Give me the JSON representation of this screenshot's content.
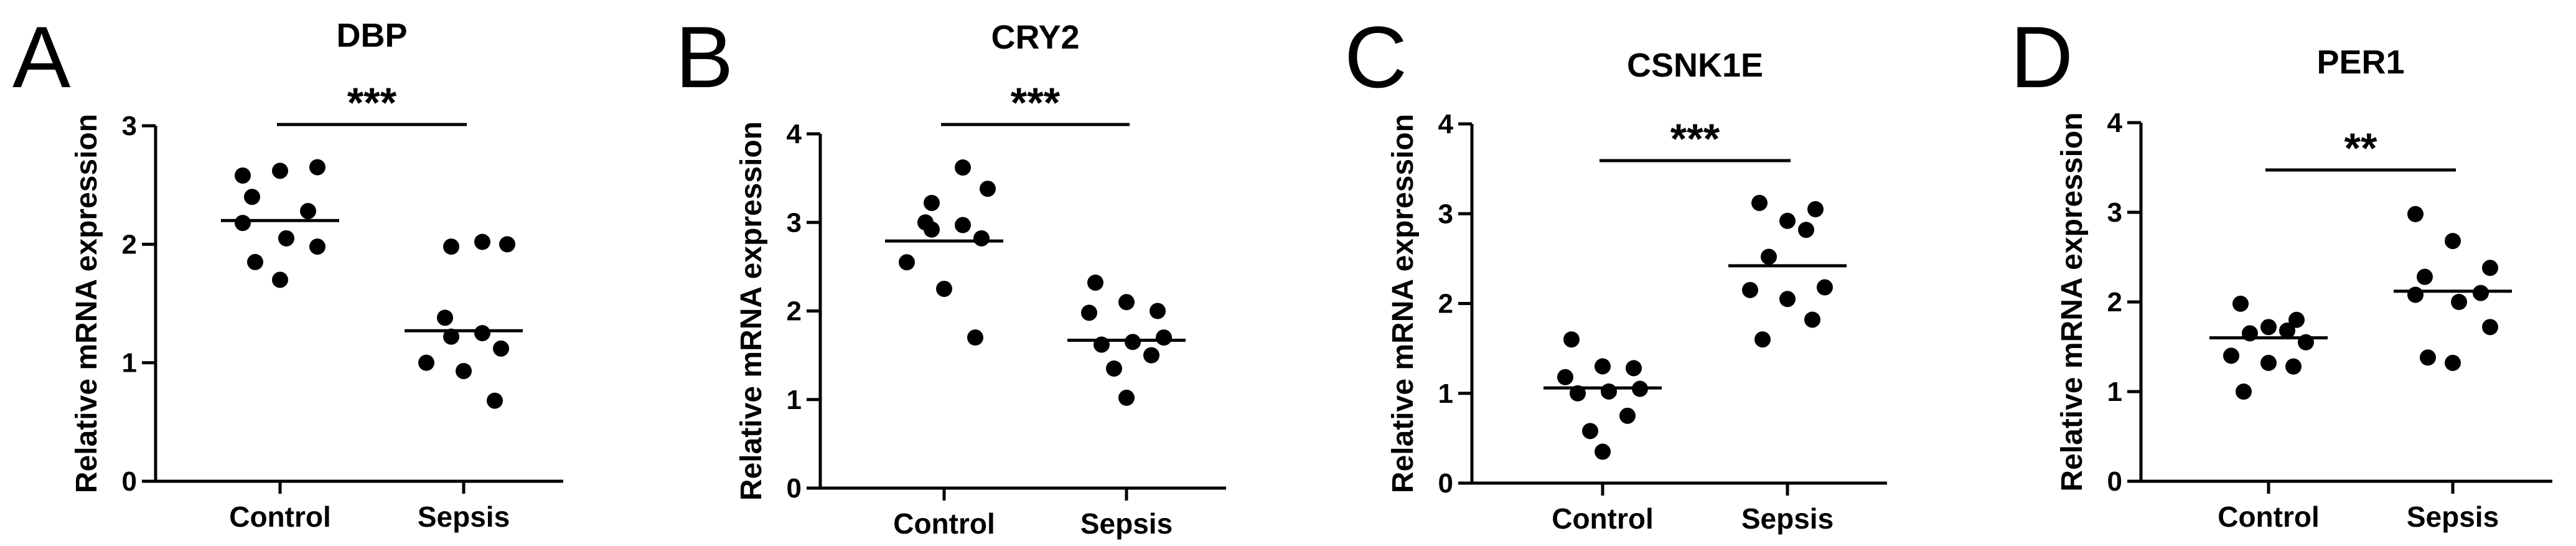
{
  "chart_data": [
    {
      "panel": "A",
      "type": "scatter",
      "title": "DBP",
      "ylabel": "Relative mRNA expression",
      "categories": [
        "Control",
        "Sepsis"
      ],
      "ylim": [
        0,
        3
      ],
      "yticks": [
        "0",
        "1",
        "2",
        "3"
      ],
      "means": [
        2.2,
        1.27
      ],
      "points": [
        [
          2.58,
          2.62,
          2.65,
          2.4,
          2.28,
          2.18,
          2.05,
          1.98,
          1.85,
          1.7
        ],
        [
          2.02,
          2.0,
          1.98,
          1.38,
          1.25,
          1.22,
          1.12,
          1.0,
          0.93,
          0.68
        ]
      ],
      "significance": "***"
    },
    {
      "panel": "B",
      "type": "scatter",
      "title": "CRY2",
      "ylabel": "Relative mRNA expression",
      "categories": [
        "Control",
        "Sepsis"
      ],
      "ylim": [
        0,
        4
      ],
      "yticks": [
        "0",
        "1",
        "2",
        "3",
        "4"
      ],
      "means": [
        2.79,
        1.67
      ],
      "points": [
        [
          3.62,
          3.38,
          3.22,
          3.0,
          2.97,
          2.92,
          2.82,
          2.55,
          2.25,
          1.7
        ],
        [
          2.32,
          2.1,
          2.0,
          1.98,
          1.7,
          1.65,
          1.62,
          1.5,
          1.35,
          1.02
        ]
      ],
      "significance": "***"
    },
    {
      "panel": "C",
      "type": "scatter",
      "title": "CSNK1E",
      "ylabel": "Relative mRNA expression",
      "categories": [
        "Control",
        "Sepsis"
      ],
      "ylim": [
        0,
        4
      ],
      "yticks": [
        "0",
        "1",
        "2",
        "3",
        "4"
      ],
      "means": [
        1.06,
        2.42
      ],
      "points": [
        [
          1.6,
          1.3,
          1.28,
          1.18,
          1.05,
          1.02,
          1.0,
          0.75,
          0.58,
          0.35
        ],
        [
          3.12,
          3.05,
          2.92,
          2.82,
          2.52,
          2.18,
          2.15,
          2.05,
          1.82,
          1.6
        ]
      ],
      "significance": "***"
    },
    {
      "panel": "D",
      "type": "scatter",
      "title": "PER1",
      "ylabel": "Relative mRNA expression",
      "categories": [
        "Control",
        "Sepsis"
      ],
      "ylim": [
        0,
        4
      ],
      "yticks": [
        "0",
        "1",
        "2",
        "3",
        "4"
      ],
      "means": [
        1.6,
        2.12
      ],
      "points": [
        [
          1.98,
          1.8,
          1.72,
          1.68,
          1.65,
          1.55,
          1.4,
          1.32,
          1.28,
          1.0
        ],
        [
          2.98,
          2.68,
          2.38,
          2.28,
          2.1,
          2.08,
          2.0,
          1.72,
          1.38,
          1.32
        ]
      ],
      "significance": "**"
    }
  ]
}
